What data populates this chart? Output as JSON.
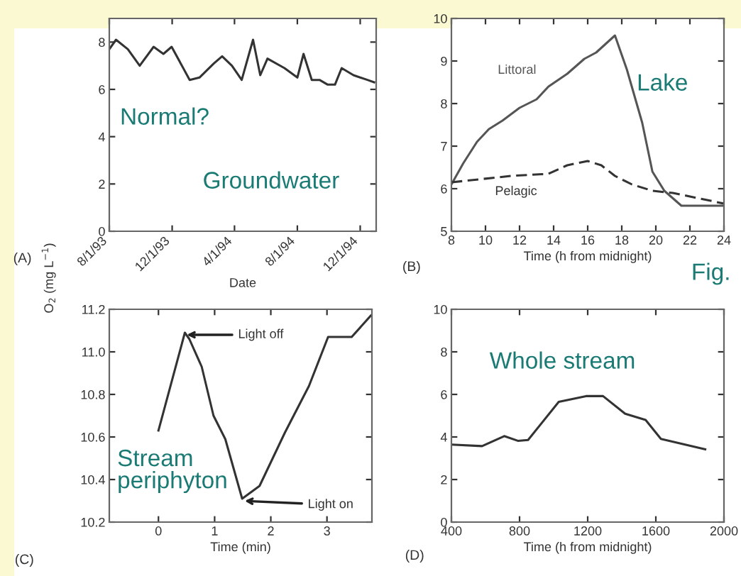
{
  "chart_data": [
    {
      "type": "line",
      "xlabel": "Date",
      "ylabel": "O$_{2}$ (mg L$^{−1}$)",
      "xlim": [
        "1993-08-01",
        "1995-01-01"
      ],
      "ylim": [
        0,
        9
      ],
      "xticks": [
        {
          "value": "1993-08-01",
          "label": "8/1/93"
        },
        {
          "value": "1993-12-01",
          "label": "12/1/93"
        },
        {
          "value": "1994-04-01",
          "label": "4/1/94"
        },
        {
          "value": "1994-08-01",
          "label": "8/1/94"
        },
        {
          "value": "1994-12-01",
          "label": "12/1/94"
        }
      ],
      "yticks": [
        0,
        2,
        4,
        6,
        8
      ],
      "grid": false,
      "legend": false,
      "marker": "none",
      "x": [
        "1993-08-01",
        "1993-08-14",
        "1993-09-06",
        "1993-09-29",
        "1993-10-26",
        "1993-11-14",
        "1993-11-30",
        "1994-01-04",
        "1994-01-23",
        "1994-02-20",
        "1994-03-08",
        "1994-03-27",
        "1994-04-15",
        "1994-05-07",
        "1994-05-21",
        "1994-06-04",
        "1994-07-07",
        "1994-08-01",
        "1994-08-13",
        "1994-08-29",
        "1994-09-13",
        "1994-09-29",
        "1994-10-13",
        "1994-10-26",
        "1994-11-18",
        "1994-12-15",
        "1994-12-28"
      ],
      "series": [
        {
          "color": "#333333",
          "line_style": "solid",
          "values": [
            7.7,
            8.1,
            7.7,
            7.0,
            7.8,
            7.5,
            7.8,
            6.4,
            6.5,
            7.1,
            7.4,
            7.0,
            6.4,
            8.1,
            6.6,
            7.3,
            6.9,
            6.5,
            7.5,
            6.4,
            6.4,
            6.2,
            6.2,
            6.9,
            6.6,
            6.4,
            6.3
          ]
        }
      ],
      "annotations": [
        "(A)",
        "Normal?",
        "Groundwater"
      ]
    },
    {
      "type": "line",
      "xlabel": "Time (h from midnight)",
      "xlim": [
        8,
        24
      ],
      "ylim": [
        5,
        10
      ],
      "xticks": [
        8,
        10,
        12,
        14,
        16,
        18,
        20,
        22,
        24
      ],
      "yticks": [
        5,
        6,
        7,
        8,
        9,
        10
      ],
      "grid": false,
      "legend": false,
      "marker": "none",
      "series": [
        {
          "name": "Littoral",
          "color": "#555555",
          "line_style": "solid",
          "x": [
            8,
            8.7,
            9.5,
            10.2,
            11,
            12,
            13,
            13.7,
            14.8,
            15.8,
            16.5,
            17.6,
            18.3,
            19.2,
            19.8,
            20.5,
            21.5,
            22.3,
            23.2,
            24
          ],
          "values": [
            6.1,
            6.6,
            7.1,
            7.4,
            7.6,
            7.9,
            8.1,
            8.4,
            8.7,
            9.05,
            9.2,
            9.6,
            8.8,
            7.55,
            6.4,
            5.95,
            5.6,
            5.6,
            5.6,
            5.6
          ]
        },
        {
          "name": "Pelagic",
          "color": "#333333",
          "line_style": "dashed",
          "x": [
            8,
            11.5,
            13.7,
            14.8,
            16,
            16.8,
            17.6,
            18.6,
            19.8,
            21,
            24
          ],
          "values": [
            6.15,
            6.3,
            6.35,
            6.55,
            6.65,
            6.55,
            6.3,
            6.1,
            5.95,
            5.9,
            5.65
          ]
        }
      ],
      "annotations": [
        "(B)",
        "Lake",
        "Fig."
      ]
    },
    {
      "type": "line",
      "xlabel": "Time (min)",
      "xlim": [
        -0.875,
        3.8
      ],
      "ylim": [
        10.2,
        11.2
      ],
      "xticks": [
        0,
        1,
        2,
        3
      ],
      "yticks": [
        {
          "value": 10.2,
          "label": "10.2"
        },
        {
          "value": 10.4,
          "label": "10.4"
        },
        {
          "value": 10.6,
          "label": "10.6"
        },
        {
          "value": 10.8,
          "label": "10.8"
        },
        {
          "value": 11.0,
          "label": "11.0"
        },
        {
          "value": 11.2,
          "label": "11.2"
        }
      ],
      "grid": false,
      "legend": false,
      "marker": "none",
      "x": [
        0,
        0.47,
        0.55,
        0.77,
        0.98,
        1.19,
        1.49,
        1.8,
        2.25,
        2.68,
        3.02,
        3.44,
        3.78
      ],
      "series": [
        {
          "color": "#333333",
          "line_style": "solid",
          "values": [
            10.63,
            11.09,
            11.06,
            10.93,
            10.7,
            10.59,
            10.31,
            10.37,
            10.62,
            10.84,
            11.07,
            11.07,
            11.17
          ]
        }
      ],
      "annotations": [
        "(C)",
        "Stream\nperiphyton",
        {
          "text": "Light off",
          "x": 0.47,
          "y": 11.08
        },
        {
          "text": "Light on",
          "x": 1.5,
          "y": 10.3
        }
      ]
    },
    {
      "type": "line",
      "xlabel": "Time (h from midnight)",
      "xlim": [
        400,
        2000
      ],
      "ylim": [
        0,
        10
      ],
      "xticks": [
        400,
        800,
        1200,
        1600,
        2000
      ],
      "yticks": [
        0,
        2,
        4,
        6,
        8,
        10
      ],
      "grid": false,
      "legend": false,
      "marker": "none",
      "x": [
        400,
        580,
        710,
        790,
        850,
        1030,
        1190,
        1290,
        1420,
        1540,
        1630,
        1890
      ],
      "series": [
        {
          "color": "#333333",
          "line_style": "solid",
          "values": [
            3.64,
            3.57,
            4.04,
            3.82,
            3.86,
            5.65,
            5.92,
            5.92,
            5.09,
            4.8,
            3.91,
            3.42
          ]
        }
      ],
      "annotations": [
        "(D)",
        "Whole stream"
      ]
    }
  ]
}
